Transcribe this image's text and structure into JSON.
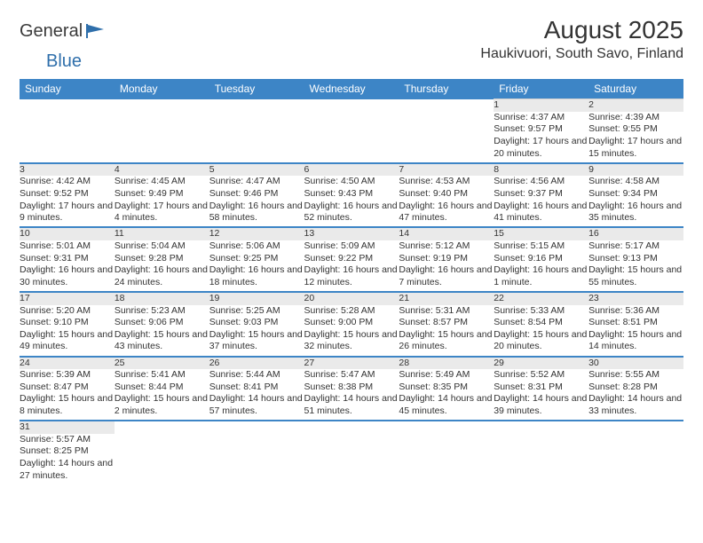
{
  "logo": {
    "text1": "General",
    "text2": "Blue"
  },
  "title": "August 2025",
  "location": "Haukivuori, South Savo, Finland",
  "header_bg": "#3d85c6",
  "row_divider_color": "#3d85c6",
  "daynum_bg": "#eaeaea",
  "weekdays": [
    "Sunday",
    "Monday",
    "Tuesday",
    "Wednesday",
    "Thursday",
    "Friday",
    "Saturday"
  ],
  "weeks": [
    {
      "nums": [
        "",
        "",
        "",
        "",
        "",
        "1",
        "2"
      ],
      "cells": [
        null,
        null,
        null,
        null,
        null,
        {
          "sunrise": "4:37 AM",
          "sunset": "9:57 PM",
          "daylight": "17 hours and 20 minutes."
        },
        {
          "sunrise": "4:39 AM",
          "sunset": "9:55 PM",
          "daylight": "17 hours and 15 minutes."
        }
      ]
    },
    {
      "nums": [
        "3",
        "4",
        "5",
        "6",
        "7",
        "8",
        "9"
      ],
      "cells": [
        {
          "sunrise": "4:42 AM",
          "sunset": "9:52 PM",
          "daylight": "17 hours and 9 minutes."
        },
        {
          "sunrise": "4:45 AM",
          "sunset": "9:49 PM",
          "daylight": "17 hours and 4 minutes."
        },
        {
          "sunrise": "4:47 AM",
          "sunset": "9:46 PM",
          "daylight": "16 hours and 58 minutes."
        },
        {
          "sunrise": "4:50 AM",
          "sunset": "9:43 PM",
          "daylight": "16 hours and 52 minutes."
        },
        {
          "sunrise": "4:53 AM",
          "sunset": "9:40 PM",
          "daylight": "16 hours and 47 minutes."
        },
        {
          "sunrise": "4:56 AM",
          "sunset": "9:37 PM",
          "daylight": "16 hours and 41 minutes."
        },
        {
          "sunrise": "4:58 AM",
          "sunset": "9:34 PM",
          "daylight": "16 hours and 35 minutes."
        }
      ]
    },
    {
      "nums": [
        "10",
        "11",
        "12",
        "13",
        "14",
        "15",
        "16"
      ],
      "cells": [
        {
          "sunrise": "5:01 AM",
          "sunset": "9:31 PM",
          "daylight": "16 hours and 30 minutes."
        },
        {
          "sunrise": "5:04 AM",
          "sunset": "9:28 PM",
          "daylight": "16 hours and 24 minutes."
        },
        {
          "sunrise": "5:06 AM",
          "sunset": "9:25 PM",
          "daylight": "16 hours and 18 minutes."
        },
        {
          "sunrise": "5:09 AM",
          "sunset": "9:22 PM",
          "daylight": "16 hours and 12 minutes."
        },
        {
          "sunrise": "5:12 AM",
          "sunset": "9:19 PM",
          "daylight": "16 hours and 7 minutes."
        },
        {
          "sunrise": "5:15 AM",
          "sunset": "9:16 PM",
          "daylight": "16 hours and 1 minute."
        },
        {
          "sunrise": "5:17 AM",
          "sunset": "9:13 PM",
          "daylight": "15 hours and 55 minutes."
        }
      ]
    },
    {
      "nums": [
        "17",
        "18",
        "19",
        "20",
        "21",
        "22",
        "23"
      ],
      "cells": [
        {
          "sunrise": "5:20 AM",
          "sunset": "9:10 PM",
          "daylight": "15 hours and 49 minutes."
        },
        {
          "sunrise": "5:23 AM",
          "sunset": "9:06 PM",
          "daylight": "15 hours and 43 minutes."
        },
        {
          "sunrise": "5:25 AM",
          "sunset": "9:03 PM",
          "daylight": "15 hours and 37 minutes."
        },
        {
          "sunrise": "5:28 AM",
          "sunset": "9:00 PM",
          "daylight": "15 hours and 32 minutes."
        },
        {
          "sunrise": "5:31 AM",
          "sunset": "8:57 PM",
          "daylight": "15 hours and 26 minutes."
        },
        {
          "sunrise": "5:33 AM",
          "sunset": "8:54 PM",
          "daylight": "15 hours and 20 minutes."
        },
        {
          "sunrise": "5:36 AM",
          "sunset": "8:51 PM",
          "daylight": "15 hours and 14 minutes."
        }
      ]
    },
    {
      "nums": [
        "24",
        "25",
        "26",
        "27",
        "28",
        "29",
        "30"
      ],
      "cells": [
        {
          "sunrise": "5:39 AM",
          "sunset": "8:47 PM",
          "daylight": "15 hours and 8 minutes."
        },
        {
          "sunrise": "5:41 AM",
          "sunset": "8:44 PM",
          "daylight": "15 hours and 2 minutes."
        },
        {
          "sunrise": "5:44 AM",
          "sunset": "8:41 PM",
          "daylight": "14 hours and 57 minutes."
        },
        {
          "sunrise": "5:47 AM",
          "sunset": "8:38 PM",
          "daylight": "14 hours and 51 minutes."
        },
        {
          "sunrise": "5:49 AM",
          "sunset": "8:35 PM",
          "daylight": "14 hours and 45 minutes."
        },
        {
          "sunrise": "5:52 AM",
          "sunset": "8:31 PM",
          "daylight": "14 hours and 39 minutes."
        },
        {
          "sunrise": "5:55 AM",
          "sunset": "8:28 PM",
          "daylight": "14 hours and 33 minutes."
        }
      ]
    },
    {
      "nums": [
        "31",
        "",
        "",
        "",
        "",
        "",
        ""
      ],
      "cells": [
        {
          "sunrise": "5:57 AM",
          "sunset": "8:25 PM",
          "daylight": "14 hours and 27 minutes."
        },
        null,
        null,
        null,
        null,
        null,
        null
      ]
    }
  ],
  "labels": {
    "sunrise": "Sunrise:",
    "sunset": "Sunset:",
    "daylight": "Daylight:"
  }
}
